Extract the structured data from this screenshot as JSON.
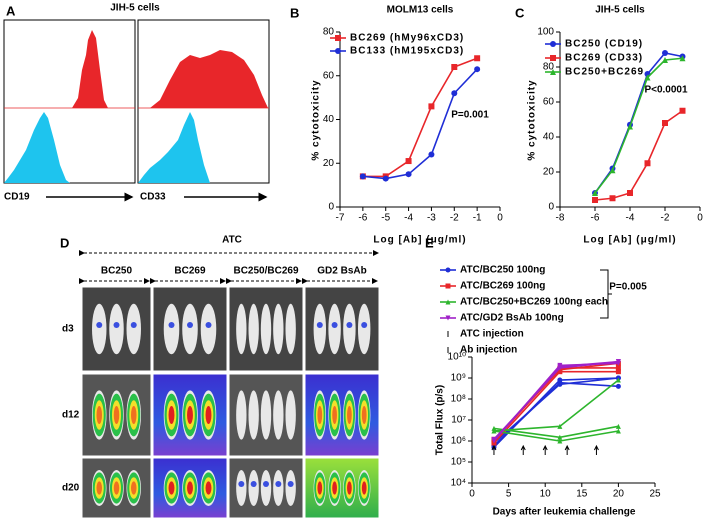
{
  "panel_a": {
    "panel": "A",
    "title": "JIH-5 cells",
    "left_label": "CD19",
    "right_label": "CD33"
  },
  "panel_d": {
    "panel": "D",
    "group_label": "ATC",
    "columns": [
      "BC250",
      "BC269",
      "BC250/BC269",
      "GD2 BsAb"
    ],
    "rows": [
      "d3",
      "d12",
      "d20"
    ]
  },
  "chart_data": [
    {
      "type": "line",
      "panel": "B",
      "title": "MOLM13 cells",
      "x_label": "Log [Ab] (μg/ml)",
      "y_label": "% cytotoxicity",
      "annotation": "P=0.001",
      "x": [
        -6,
        -5,
        -4,
        -3,
        -2,
        -1
      ],
      "series": [
        {
          "name": "BC269 (hMy96xCD3)",
          "color": "#e8262a",
          "marker": "square",
          "values": [
            14,
            14,
            21,
            46,
            64,
            68
          ]
        },
        {
          "name": "BC133 (hM195xCD3)",
          "color": "#1f2ed6",
          "marker": "circle",
          "values": [
            14,
            13,
            15,
            24,
            52,
            63
          ]
        }
      ],
      "xlim": [
        -7,
        0
      ],
      "xticks": [
        -7,
        -6,
        -5,
        -4,
        -3,
        -2,
        -1,
        0
      ],
      "ylim": [
        0,
        80
      ],
      "yticks": [
        0,
        20,
        40,
        60,
        80
      ]
    },
    {
      "type": "line",
      "panel": "C",
      "title": "JIH-5 cells",
      "x_label": "Log [Ab] (μg/ml)",
      "y_label": "% cytotoxicity",
      "annotation": "P<0.0001",
      "x": [
        -6,
        -5,
        -4,
        -3,
        -2,
        -1
      ],
      "series": [
        {
          "name": "BC250 (CD19)",
          "color": "#1f2ed6",
          "marker": "circle",
          "values": [
            8,
            22,
            47,
            76,
            88,
            86
          ]
        },
        {
          "name": "BC269 (CD33)",
          "color": "#e8262a",
          "marker": "square",
          "values": [
            4,
            5,
            8,
            25,
            48,
            55
          ]
        },
        {
          "name": "BC250+BC269",
          "color": "#2db52d",
          "marker": "triangle",
          "values": [
            8,
            21,
            46,
            74,
            84,
            85
          ]
        }
      ],
      "xlim": [
        -8,
        0
      ],
      "xticks": [
        -8,
        -6,
        -4,
        -2,
        0
      ],
      "ylim": [
        0,
        100
      ],
      "yticks": [
        0,
        20,
        40,
        60,
        80,
        100
      ]
    },
    {
      "type": "line",
      "panel": "E",
      "x_label": "Days after leukemia challenge",
      "y_label": "Total Flux (p/s)",
      "annotation": "P=0.005",
      "log_y": true,
      "event_labels": [
        "ATC injection",
        "Ab injection"
      ],
      "injection_days": [
        3,
        7,
        10,
        13,
        17
      ],
      "x": [
        3,
        12,
        20
      ],
      "series": [
        {
          "name": "ATC/BC250 100ng",
          "color": "#1f2ed6",
          "marker": "circle",
          "values": [
            [
              500000,
              800000000,
              1000000000
            ],
            [
              600000,
              600000000,
              400000000
            ],
            [
              800000,
              500000000,
              1000000000
            ]
          ]
        },
        {
          "name": "ATC/BC269 100ng",
          "color": "#e8262a",
          "marker": "square",
          "values": [
            [
              1000000,
              3000000000,
              3000000000
            ],
            [
              800000,
              2000000000,
              2000000000
            ],
            [
              1200000,
              2500000000,
              5000000000
            ]
          ]
        },
        {
          "name": "ATC/BC250+BC269 100ng each",
          "color": "#2db52d",
          "marker": "triangle",
          "values": [
            [
              3000000,
              5000000,
              800000000
            ],
            [
              4000000,
              1500000,
              5000000
            ],
            [
              3000000,
              1000000,
              3000000
            ]
          ]
        },
        {
          "name": "ATC/GD2 BsAb 100ng",
          "color": "#a020c8",
          "marker": "triangle-down",
          "values": [
            [
              1200000,
              3000000000,
              6000000000
            ],
            [
              1000000,
              4000000000,
              5000000000
            ],
            [
              1100000,
              3500000000,
              6000000000
            ]
          ]
        }
      ],
      "xlim": [
        0,
        25
      ],
      "xticks": [
        0,
        5,
        10,
        15,
        20,
        25
      ],
      "ylim": [
        10000,
        10000000000
      ],
      "yticks": [
        {
          "value": 10000,
          "label": "10⁴"
        },
        {
          "value": 100000,
          "label": "10⁵"
        },
        {
          "value": 1000000,
          "label": "10⁶"
        },
        {
          "value": 10000000,
          "label": "10⁷"
        },
        {
          "value": 100000000,
          "label": "10⁸"
        },
        {
          "value": 1000000000,
          "label": "10⁹"
        },
        {
          "value": 10000000000,
          "label": "10¹⁰"
        }
      ]
    }
  ]
}
